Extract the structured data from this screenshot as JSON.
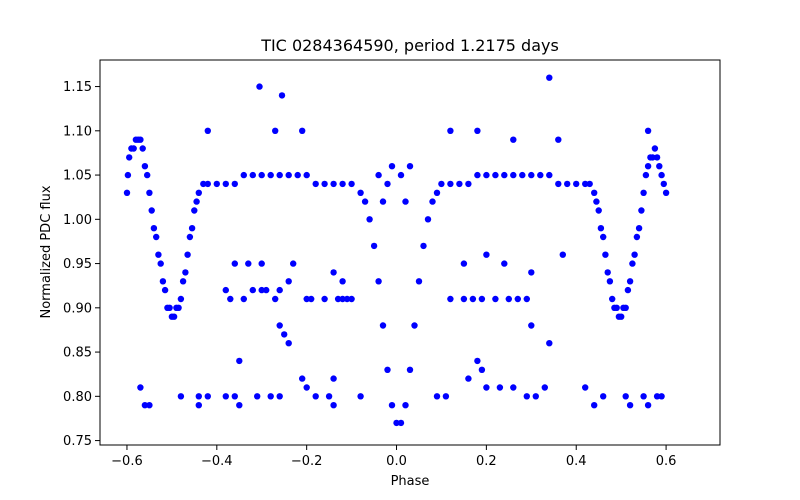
{
  "chart_data": {
    "type": "scatter",
    "title": "TIC 0284364590, period 1.2175 days",
    "xlabel": "Phase",
    "ylabel": "Normalized PDC flux",
    "xlim": [
      -0.66,
      0.72
    ],
    "ylim": [
      0.745,
      1.18
    ],
    "x_ticks": [
      -0.6,
      -0.4,
      -0.2,
      0.0,
      0.2,
      0.4,
      0.6
    ],
    "x_tick_labels": [
      "−0.6",
      "−0.4",
      "−0.2",
      "0.0",
      "0.2",
      "0.4",
      "0.6"
    ],
    "y_ticks": [
      0.75,
      0.8,
      0.85,
      0.9,
      0.95,
      1.0,
      1.05,
      1.1,
      1.15
    ],
    "y_tick_labels": [
      "0.75",
      "0.80",
      "0.85",
      "0.90",
      "0.95",
      "1.00",
      "1.05",
      "1.10",
      "1.15"
    ],
    "grid": false,
    "marker_color": "#0000ff",
    "series": [
      {
        "values": [
          [
            -0.6,
            1.03
          ],
          [
            -0.598,
            1.05
          ],
          [
            -0.595,
            1.07
          ],
          [
            -0.59,
            1.08
          ],
          [
            -0.585,
            1.08
          ],
          [
            -0.58,
            1.09
          ],
          [
            -0.575,
            1.09
          ],
          [
            -0.57,
            1.09
          ],
          [
            -0.565,
            1.08
          ],
          [
            -0.56,
            1.06
          ],
          [
            -0.555,
            1.05
          ],
          [
            -0.55,
            1.03
          ],
          [
            -0.545,
            1.01
          ],
          [
            -0.54,
            0.99
          ],
          [
            -0.535,
            0.98
          ],
          [
            -0.53,
            0.96
          ],
          [
            -0.525,
            0.95
          ],
          [
            -0.52,
            0.93
          ],
          [
            -0.515,
            0.92
          ],
          [
            -0.51,
            0.9
          ],
          [
            -0.505,
            0.9
          ],
          [
            -0.5,
            0.89
          ],
          [
            -0.495,
            0.89
          ],
          [
            -0.49,
            0.9
          ],
          [
            -0.485,
            0.9
          ],
          [
            -0.48,
            0.91
          ],
          [
            -0.475,
            0.93
          ],
          [
            -0.47,
            0.94
          ],
          [
            -0.465,
            0.96
          ],
          [
            -0.46,
            0.98
          ],
          [
            -0.455,
            0.99
          ],
          [
            -0.45,
            1.01
          ],
          [
            -0.445,
            1.02
          ],
          [
            -0.44,
            1.03
          ],
          [
            -0.43,
            1.04
          ],
          [
            -0.42,
            1.04
          ],
          [
            -0.4,
            1.04
          ],
          [
            -0.38,
            1.04
          ],
          [
            -0.36,
            1.04
          ],
          [
            -0.34,
            1.05
          ],
          [
            -0.32,
            1.05
          ],
          [
            -0.3,
            1.05
          ],
          [
            -0.28,
            1.05
          ],
          [
            -0.26,
            1.05
          ],
          [
            -0.24,
            1.05
          ],
          [
            -0.22,
            1.05
          ],
          [
            -0.2,
            1.05
          ],
          [
            -0.18,
            1.04
          ],
          [
            -0.16,
            1.04
          ],
          [
            -0.14,
            1.04
          ],
          [
            -0.12,
            1.04
          ],
          [
            -0.1,
            1.04
          ],
          [
            -0.08,
            1.03
          ],
          [
            -0.07,
            1.02
          ],
          [
            -0.06,
            1.0
          ],
          [
            -0.05,
            0.97
          ],
          [
            -0.04,
            0.93
          ],
          [
            -0.03,
            0.88
          ],
          [
            -0.02,
            0.83
          ],
          [
            -0.01,
            0.79
          ],
          [
            0.0,
            0.77
          ],
          [
            0.01,
            0.77
          ],
          [
            0.02,
            0.79
          ],
          [
            0.03,
            0.83
          ],
          [
            0.04,
            0.88
          ],
          [
            0.05,
            0.93
          ],
          [
            0.06,
            0.97
          ],
          [
            0.07,
            1.0
          ],
          [
            0.08,
            1.02
          ],
          [
            0.09,
            1.03
          ],
          [
            0.1,
            1.04
          ],
          [
            0.12,
            1.04
          ],
          [
            0.14,
            1.04
          ],
          [
            0.16,
            1.04
          ],
          [
            0.18,
            1.05
          ],
          [
            0.2,
            1.05
          ],
          [
            0.22,
            1.05
          ],
          [
            0.24,
            1.05
          ],
          [
            0.26,
            1.05
          ],
          [
            0.28,
            1.05
          ],
          [
            0.3,
            1.05
          ],
          [
            0.32,
            1.05
          ],
          [
            0.34,
            1.05
          ],
          [
            0.36,
            1.04
          ],
          [
            0.38,
            1.04
          ],
          [
            0.4,
            1.04
          ],
          [
            0.42,
            1.04
          ],
          [
            0.43,
            1.04
          ],
          [
            0.44,
            1.03
          ],
          [
            0.445,
            1.02
          ],
          [
            0.45,
            1.01
          ],
          [
            0.455,
            0.99
          ],
          [
            0.46,
            0.98
          ],
          [
            0.465,
            0.96
          ],
          [
            0.47,
            0.94
          ],
          [
            0.475,
            0.93
          ],
          [
            0.48,
            0.91
          ],
          [
            0.485,
            0.9
          ],
          [
            0.49,
            0.9
          ],
          [
            0.495,
            0.89
          ],
          [
            0.5,
            0.89
          ],
          [
            0.505,
            0.9
          ],
          [
            0.51,
            0.9
          ],
          [
            0.515,
            0.92
          ],
          [
            0.52,
            0.93
          ],
          [
            0.525,
            0.95
          ],
          [
            0.53,
            0.96
          ],
          [
            0.535,
            0.98
          ],
          [
            0.54,
            0.99
          ],
          [
            0.545,
            1.01
          ],
          [
            0.55,
            1.03
          ],
          [
            0.555,
            1.05
          ],
          [
            0.56,
            1.06
          ],
          [
            0.565,
            1.07
          ],
          [
            0.57,
            1.07
          ],
          [
            0.575,
            1.08
          ],
          [
            0.58,
            1.07
          ],
          [
            0.585,
            1.06
          ],
          [
            0.59,
            1.05
          ],
          [
            0.595,
            1.04
          ],
          [
            0.6,
            1.03
          ],
          [
            -0.305,
            1.15
          ],
          [
            -0.255,
            1.14
          ],
          [
            0.34,
            1.16
          ],
          [
            -0.42,
            1.1
          ],
          [
            -0.27,
            1.1
          ],
          [
            -0.21,
            1.1
          ],
          [
            0.12,
            1.1
          ],
          [
            0.18,
            1.1
          ],
          [
            0.26,
            1.09
          ],
          [
            0.36,
            1.09
          ],
          [
            0.56,
            1.1
          ],
          [
            -0.35,
            0.84
          ],
          [
            -0.26,
            0.88
          ],
          [
            -0.25,
            0.87
          ],
          [
            -0.24,
            0.86
          ],
          [
            0.18,
            0.84
          ],
          [
            0.19,
            0.83
          ],
          [
            0.3,
            0.88
          ],
          [
            0.34,
            0.86
          ],
          [
            -0.57,
            0.81
          ],
          [
            -0.56,
            0.79
          ],
          [
            -0.55,
            0.79
          ],
          [
            -0.48,
            0.8
          ],
          [
            -0.44,
            0.8
          ],
          [
            -0.44,
            0.79
          ],
          [
            -0.42,
            0.8
          ],
          [
            -0.38,
            0.8
          ],
          [
            -0.36,
            0.8
          ],
          [
            -0.35,
            0.79
          ],
          [
            -0.31,
            0.8
          ],
          [
            -0.28,
            0.8
          ],
          [
            -0.26,
            0.8
          ],
          [
            -0.21,
            0.82
          ],
          [
            -0.2,
            0.81
          ],
          [
            -0.18,
            0.8
          ],
          [
            -0.15,
            0.8
          ],
          [
            -0.14,
            0.79
          ],
          [
            -0.14,
            0.82
          ],
          [
            -0.08,
            0.8
          ],
          [
            0.09,
            0.8
          ],
          [
            0.11,
            0.8
          ],
          [
            0.16,
            0.82
          ],
          [
            0.2,
            0.81
          ],
          [
            0.23,
            0.81
          ],
          [
            0.26,
            0.81
          ],
          [
            0.29,
            0.8
          ],
          [
            0.31,
            0.8
          ],
          [
            0.33,
            0.81
          ],
          [
            0.42,
            0.81
          ],
          [
            0.44,
            0.79
          ],
          [
            0.46,
            0.8
          ],
          [
            0.51,
            0.8
          ],
          [
            0.52,
            0.79
          ],
          [
            0.55,
            0.8
          ],
          [
            0.56,
            0.79
          ],
          [
            0.58,
            0.8
          ],
          [
            0.59,
            0.8
          ],
          [
            -0.38,
            0.92
          ],
          [
            -0.37,
            0.91
          ],
          [
            -0.34,
            0.91
          ],
          [
            -0.32,
            0.92
          ],
          [
            -0.3,
            0.92
          ],
          [
            -0.29,
            0.92
          ],
          [
            -0.27,
            0.91
          ],
          [
            -0.26,
            0.92
          ],
          [
            -0.2,
            0.91
          ],
          [
            -0.19,
            0.91
          ],
          [
            -0.16,
            0.91
          ],
          [
            -0.13,
            0.91
          ],
          [
            -0.12,
            0.91
          ],
          [
            -0.11,
            0.91
          ],
          [
            -0.1,
            0.91
          ],
          [
            0.12,
            0.91
          ],
          [
            0.15,
            0.91
          ],
          [
            0.17,
            0.91
          ],
          [
            0.19,
            0.91
          ],
          [
            0.22,
            0.91
          ],
          [
            0.25,
            0.91
          ],
          [
            0.27,
            0.91
          ],
          [
            0.29,
            0.91
          ],
          [
            -0.36,
            0.95
          ],
          [
            -0.33,
            0.95
          ],
          [
            -0.3,
            0.95
          ],
          [
            -0.24,
            0.93
          ],
          [
            -0.23,
            0.95
          ],
          [
            -0.14,
            0.94
          ],
          [
            -0.12,
            0.93
          ],
          [
            0.15,
            0.95
          ],
          [
            0.2,
            0.96
          ],
          [
            0.24,
            0.95
          ],
          [
            0.3,
            0.94
          ],
          [
            0.37,
            0.96
          ],
          [
            -0.04,
            1.05
          ],
          [
            -0.02,
            1.04
          ],
          [
            -0.01,
            1.06
          ],
          [
            0.01,
            1.05
          ],
          [
            0.03,
            1.06
          ],
          [
            -0.03,
            1.02
          ],
          [
            0.02,
            1.02
          ]
        ]
      }
    ]
  }
}
